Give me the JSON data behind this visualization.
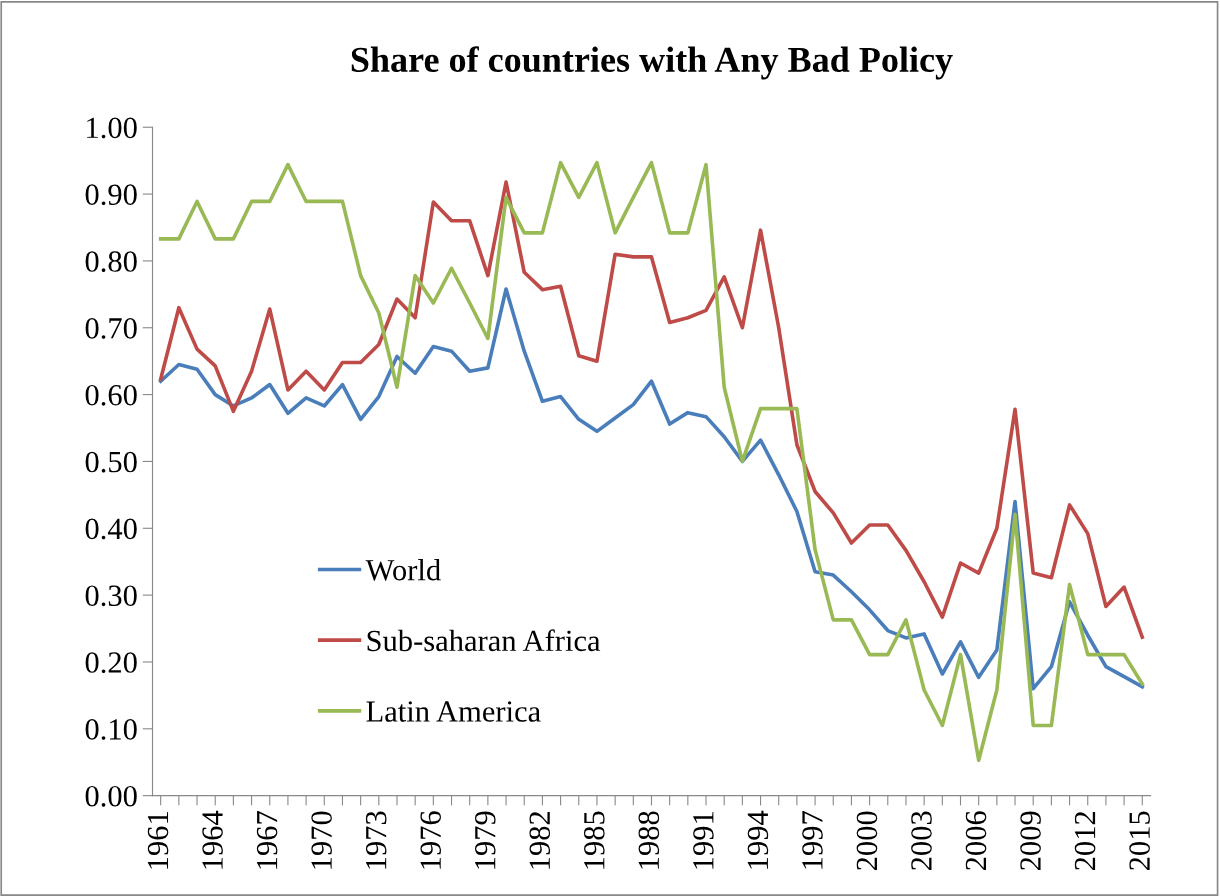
{
  "chart_data": {
    "type": "line",
    "title": "Share of countries with Any Bad Policy",
    "categories": [
      "1961",
      null,
      null,
      "1964",
      null,
      null,
      "1967",
      null,
      null,
      "1970",
      null,
      null,
      "1973",
      null,
      null,
      "1976",
      null,
      null,
      "1979",
      null,
      null,
      "1982",
      null,
      null,
      "1985",
      null,
      null,
      "1988",
      null,
      null,
      "1991",
      null,
      null,
      "1994",
      null,
      null,
      "1997",
      null,
      null,
      "2000",
      null,
      null,
      "2003",
      null,
      null,
      "2006",
      null,
      null,
      "2009",
      null,
      null,
      "2012",
      null,
      null,
      "2015"
    ],
    "series": [
      {
        "name": "World",
        "color": "#4a7ebb",
        "values": [
          0.62,
          0.645,
          0.638,
          0.6,
          0.583,
          0.595,
          0.615,
          0.572,
          0.595,
          0.583,
          0.615,
          0.563,
          0.597,
          0.657,
          0.632,
          0.672,
          0.665,
          0.635,
          0.64,
          0.758,
          0.665,
          0.59,
          0.597,
          0.563,
          0.545,
          0.565,
          0.585,
          0.62,
          0.556,
          0.573,
          0.567,
          0.537,
          0.5,
          0.532,
          0.48,
          0.425,
          0.335,
          0.33,
          0.305,
          0.278,
          0.247,
          0.236,
          0.242,
          0.182,
          0.23,
          0.177,
          0.218,
          0.44,
          0.16,
          0.193,
          0.29,
          0.24,
          0.193,
          0.178,
          0.163
        ]
      },
      {
        "name": "Sub-saharan Africa",
        "color": "#be4b48",
        "values": [
          0.623,
          0.73,
          0.668,
          0.643,
          0.575,
          0.635,
          0.728,
          0.607,
          0.635,
          0.607,
          0.648,
          0.648,
          0.675,
          0.743,
          0.715,
          0.888,
          0.86,
          0.86,
          0.778,
          0.918,
          0.783,
          0.757,
          0.762,
          0.658,
          0.65,
          0.81,
          0.806,
          0.806,
          0.708,
          0.715,
          0.726,
          0.776,
          0.7,
          0.846,
          0.7,
          0.525,
          0.455,
          0.423,
          0.378,
          0.405,
          0.405,
          0.367,
          0.32,
          0.267,
          0.348,
          0.333,
          0.4,
          0.578,
          0.333,
          0.326,
          0.435,
          0.392,
          0.283,
          0.312,
          0.237
        ]
      },
      {
        "name": "Latin America",
        "color": "#98b954",
        "values": [
          0.833,
          0.833,
          0.889,
          0.833,
          0.833,
          0.889,
          0.889,
          0.944,
          0.889,
          0.889,
          0.889,
          0.778,
          0.722,
          0.611,
          0.778,
          0.737,
          0.789,
          0.737,
          0.684,
          0.895,
          0.842,
          0.842,
          0.947,
          0.895,
          0.947,
          0.842,
          0.895,
          0.947,
          0.842,
          0.842,
          0.944,
          0.611,
          0.5,
          0.579,
          0.579,
          0.579,
          0.368,
          0.263,
          0.263,
          0.211,
          0.211,
          0.263,
          0.158,
          0.105,
          0.211,
          0.053,
          0.158,
          0.421,
          0.105,
          0.105,
          0.316,
          0.211,
          0.211,
          0.211,
          0.167
        ]
      }
    ],
    "ylim": [
      0,
      1
    ],
    "yticks": [
      {
        "value": 0,
        "label": "0.00"
      },
      {
        "value": 0.1,
        "label": "0.10"
      },
      {
        "value": 0.2,
        "label": "0.20"
      },
      {
        "value": 0.3,
        "label": "0.30"
      },
      {
        "value": 0.4,
        "label": "0.40"
      },
      {
        "value": 0.5,
        "label": "0.50"
      },
      {
        "value": 0.6,
        "label": "0.60"
      },
      {
        "value": 0.7,
        "label": "0.70"
      },
      {
        "value": 0.8,
        "label": "0.80"
      },
      {
        "value": 0.9,
        "label": "0.90"
      },
      {
        "value": 1,
        "label": "1.00"
      }
    ],
    "legend": "lower left",
    "grid": false
  }
}
